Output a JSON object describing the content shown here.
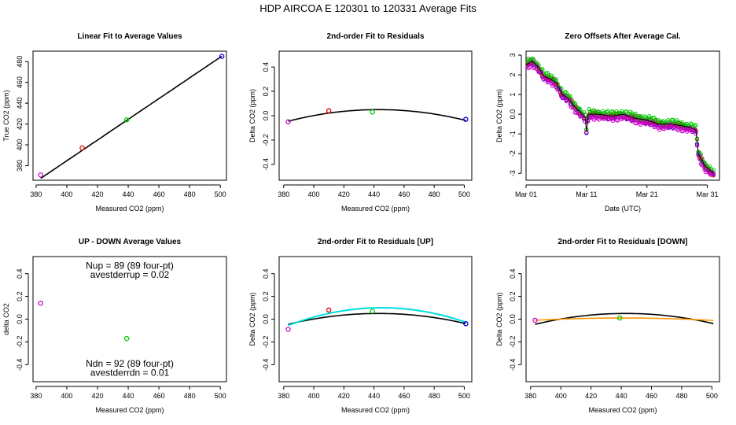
{
  "figure": {
    "title": "HDP    AIRCOA E   120301 to 120331   Average Fits"
  },
  "chart_data": [
    {
      "type": "scatter",
      "title": "Linear Fit to Average Values",
      "xlabel": "Measured CO2 (ppm)",
      "ylabel": "True CO2 (ppm)",
      "xlim": [
        378,
        504
      ],
      "ylim": [
        366,
        490
      ],
      "xticks": [
        380,
        400,
        420,
        440,
        460,
        480,
        500
      ],
      "yticks": [
        380,
        400,
        420,
        440,
        460,
        480
      ],
      "points": [
        {
          "x": 383,
          "y": 371,
          "color": "#cc00cc"
        },
        {
          "x": 410,
          "y": 397,
          "color": "#dd0000"
        },
        {
          "x": 439,
          "y": 424,
          "color": "#00cc00"
        },
        {
          "x": 501,
          "y": 485,
          "color": "#0000dd"
        }
      ],
      "lines": [
        {
          "kind": "linear",
          "a": -13.3,
          "b": 0.995,
          "x0": 383,
          "x1": 501,
          "color": "#000000"
        }
      ],
      "annotations": []
    },
    {
      "type": "scatter",
      "title": "2nd-order Fit to Residuals",
      "xlabel": "Measured CO2 (ppm)",
      "ylabel": "Delta CO2 (ppm)",
      "xlim": [
        377,
        505
      ],
      "ylim": [
        -0.53,
        0.53
      ],
      "xticks": [
        380,
        400,
        420,
        440,
        460,
        480,
        500
      ],
      "yticks": [
        -0.4,
        -0.2,
        0.0,
        0.2,
        0.4
      ],
      "points": [
        {
          "x": 383,
          "y": -0.05,
          "color": "#cc00cc"
        },
        {
          "x": 410,
          "y": 0.04,
          "color": "#dd0000"
        },
        {
          "x": 439,
          "y": 0.03,
          "color": "#00cc00"
        },
        {
          "x": 501,
          "y": -0.03,
          "color": "#0000dd"
        }
      ],
      "lines": [
        {
          "kind": "quad",
          "vx": 443,
          "vy": 0.05,
          "k": 2.65e-05,
          "x0": 383,
          "x1": 501,
          "color": "#000000"
        }
      ],
      "annotations": []
    },
    {
      "type": "scatter",
      "title": "Zero Offsets After Average Cal.",
      "xlabel": "Date (UTC)",
      "ylabel": "Delta CO2 (ppm)",
      "xlim": [
        0,
        32
      ],
      "ylim": [
        -3.35,
        3.2
      ],
      "xticks": [
        0,
        10,
        20,
        30
      ],
      "xticklabels": [
        "Mar 01",
        "Mar 11",
        "Mar 21",
        "Mar 31"
      ],
      "yticks": [
        -3,
        -2,
        -1,
        0,
        1,
        2,
        3
      ],
      "series": [
        {
          "name": "blue",
          "color": "#0000dd",
          "offset": -0.05
        },
        {
          "name": "red",
          "color": "#dd0000",
          "offset": 0.0
        },
        {
          "name": "green",
          "color": "#00cc00",
          "offset": 0.12
        },
        {
          "name": "magenta",
          "color": "#cc00cc",
          "offset": -0.15
        }
      ],
      "trend": [
        [
          0,
          2.5
        ],
        [
          1,
          2.7
        ],
        [
          2,
          2.4
        ],
        [
          3,
          1.9
        ],
        [
          4,
          1.8
        ],
        [
          5,
          1.6
        ],
        [
          6,
          1.0
        ],
        [
          7,
          0.8
        ],
        [
          8,
          0.4
        ],
        [
          9,
          0.1
        ],
        [
          9.8,
          -0.2
        ],
        [
          10,
          -0.9
        ],
        [
          10.3,
          0.0
        ],
        [
          12,
          0.0
        ],
        [
          14,
          -0.1
        ],
        [
          16,
          0.0
        ],
        [
          18,
          -0.2
        ],
        [
          20,
          -0.3
        ],
        [
          22,
          -0.5
        ],
        [
          24,
          -0.5
        ],
        [
          26,
          -0.6
        ],
        [
          27.5,
          -0.7
        ],
        [
          28.1,
          -0.8
        ],
        [
          28.5,
          -2.0
        ],
        [
          29.5,
          -2.6
        ],
        [
          31,
          -3.0
        ]
      ],
      "annotations": []
    },
    {
      "type": "scatter",
      "title": "UP - DOWN Average Values",
      "xlabel": "Measured CO2 (ppm)",
      "ylabel": "delta CO2",
      "xlim": [
        378,
        504
      ],
      "ylim": [
        -0.55,
        0.55
      ],
      "xticks": [
        380,
        400,
        420,
        440,
        460,
        480,
        500
      ],
      "yticks": [
        -0.4,
        -0.2,
        0.0,
        0.2,
        0.4
      ],
      "points": [
        {
          "x": 383,
          "y": 0.14,
          "color": "#cc00cc"
        },
        {
          "x": 439,
          "y": -0.17,
          "color": "#00cc00"
        }
      ],
      "lines": [],
      "annotations": [
        {
          "text": "Nup = 89 (89 four-pt)",
          "x": 441,
          "y": 0.47
        },
        {
          "text": "avestderrup =  0.02",
          "x": 441,
          "y": 0.39
        },
        {
          "text": "Ndn = 92 (89 four-pt)",
          "x": 441,
          "y": -0.39
        },
        {
          "text": "avestderrdn =  0.01",
          "x": 441,
          "y": -0.47
        }
      ]
    },
    {
      "type": "scatter",
      "title": "2nd-order Fit to Residuals [UP]",
      "xlabel": "Measured CO2 (ppm)",
      "ylabel": "Delta CO2 (ppm)",
      "xlim": [
        377,
        505
      ],
      "ylim": [
        -0.55,
        0.55
      ],
      "xticks": [
        380,
        400,
        420,
        440,
        460,
        480,
        500
      ],
      "yticks": [
        -0.4,
        -0.2,
        0.0,
        0.2,
        0.4
      ],
      "points": [
        {
          "x": 383,
          "y": -0.09,
          "color": "#cc00cc"
        },
        {
          "x": 410,
          "y": 0.08,
          "color": "#dd0000"
        },
        {
          "x": 439,
          "y": 0.07,
          "color": "#00cc00"
        },
        {
          "x": 501,
          "y": -0.04,
          "color": "#0000dd"
        }
      ],
      "lines": [
        {
          "kind": "quad",
          "vx": 443,
          "vy": 0.05,
          "k": 2.65e-05,
          "x0": 383,
          "x1": 501,
          "color": "#000000"
        },
        {
          "kind": "quad",
          "vx": 445,
          "vy": 0.1,
          "k": 4.05e-05,
          "x0": 383,
          "x1": 501,
          "color": "#00dddd"
        }
      ],
      "annotations": []
    },
    {
      "type": "scatter",
      "title": "2nd-order Fit to Residuals [DOWN]",
      "xlabel": "Measured CO2 (ppm)",
      "ylabel": "Delta CO2 (ppm)",
      "xlim": [
        377,
        505
      ],
      "ylim": [
        -0.55,
        0.55
      ],
      "xticks": [
        380,
        400,
        420,
        440,
        460,
        480,
        500
      ],
      "yticks": [
        -0.4,
        -0.2,
        0.0,
        0.2,
        0.4
      ],
      "points": [
        {
          "x": 383,
          "y": -0.01,
          "color": "#cc00cc"
        },
        {
          "x": 439,
          "y": 0.01,
          "color": "#00cc00"
        }
      ],
      "lines": [
        {
          "kind": "quad",
          "vx": 443,
          "vy": 0.05,
          "k": 2.65e-05,
          "x0": 383,
          "x1": 501,
          "color": "#000000"
        },
        {
          "kind": "quad",
          "vx": 441,
          "vy": 0.01,
          "k": 6e-06,
          "x0": 383,
          "x1": 501,
          "color": "#ff9900"
        }
      ],
      "annotations": []
    }
  ]
}
